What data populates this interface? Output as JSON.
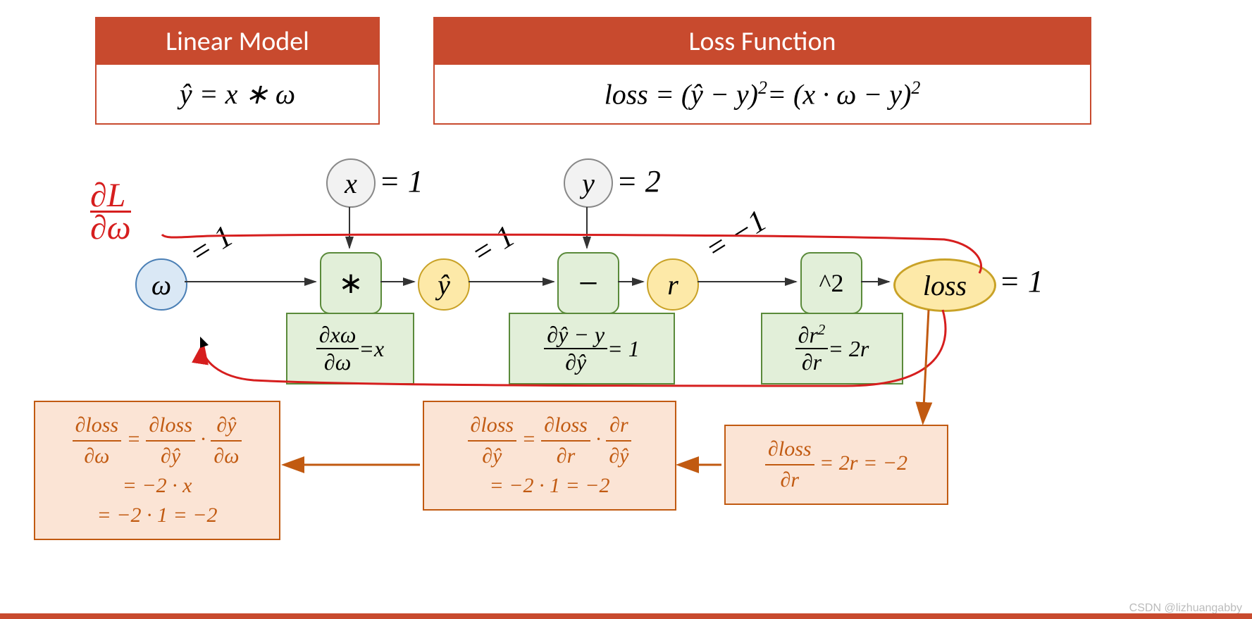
{
  "headers": {
    "linear": {
      "title": "Linear Model",
      "body": "ŷ = x ∗ ω"
    },
    "loss": {
      "title": "Loss Function",
      "body_html": "<i>loss</i> = (ŷ − y)<sup>2</sup>= (x · ω − y)<sup>2</sup>"
    }
  },
  "colors": {
    "header_bg": "#c84a2e",
    "header_border": "#c84a2e",
    "green_fill": "#e2efd9",
    "green_border": "#5a8a3a",
    "orange_fill": "#fbe4d5",
    "orange_border": "#c15a11",
    "blue_fill": "#dae8f5",
    "blue_border": "#4a7fb5",
    "yellow_fill": "#fde9a8",
    "yellow_border": "#c9a227",
    "gray_fill": "#f2f2f2",
    "gray_border": "#888",
    "arrow": "#333",
    "orange_arrow": "#c15a11",
    "hand_red": "#d61e1e"
  },
  "hand": {
    "dL_dw": "∂L",
    "dL_dw2": "∂ω"
  },
  "nodes": {
    "omega": {
      "label": "ω",
      "value": "= 1",
      "type": "blue"
    },
    "x": {
      "label": "x",
      "value": "= 1",
      "type": "gray"
    },
    "y": {
      "label": "y",
      "value": "= 2",
      "type": "gray"
    },
    "yhat": {
      "label": "ŷ",
      "value": "= 1",
      "type": "yellow"
    },
    "r": {
      "label": "r",
      "value": "= −1",
      "type": "yellow"
    },
    "loss": {
      "label": "loss",
      "value": "= 1",
      "type": "yellow-ellipse"
    }
  },
  "ops": {
    "mul": {
      "label": "∗"
    },
    "sub": {
      "label": "−"
    },
    "sq": {
      "label": "^2"
    }
  },
  "local_derivs": {
    "mul": {
      "html": "<span class='frac'><span class='num'>∂xω</span><span class='den'>∂ω</span></span> = <i>x</i>"
    },
    "sub": {
      "html": "<span class='frac'><span class='num'>∂ŷ − y</span><span class='den'>∂ŷ</span></span> = 1"
    },
    "sq": {
      "html": "<span class='frac'><span class='num'>∂r<sup>2</sup></span><span class='den'>∂r</span></span> = 2<i>r</i>"
    }
  },
  "chain": {
    "c3": {
      "html": "<span class='frac orange-txt'><span class='num'>∂loss</span><span class='den'>∂r</span></span> = 2r = −2"
    },
    "c2": {
      "html": "<span class='frac orange-txt'><span class='num'>∂loss</span><span class='den'>∂ŷ</span></span> = <span class='frac orange-txt'><span class='num'>∂loss</span><span class='den'>∂r</span></span> · <span class='frac orange-txt'><span class='num'>∂r</span><span class='den'>∂ŷ</span></span><br>= −2 · 1 = −2"
    },
    "c1": {
      "html": "<span class='frac orange-txt'><span class='num'>∂loss</span><span class='den'>∂ω</span></span> = <span class='frac orange-txt'><span class='num'>∂loss</span><span class='den'>∂ŷ</span></span> · <span class='frac orange-txt'><span class='num'>∂ŷ</span><span class='den'>∂ω</span></span><br>= −2 · x<br>= −2 · 1 = −2"
    }
  },
  "watermark": "CSDN @lizhuangabby",
  "bottom_bar_color": "#c84a2e"
}
